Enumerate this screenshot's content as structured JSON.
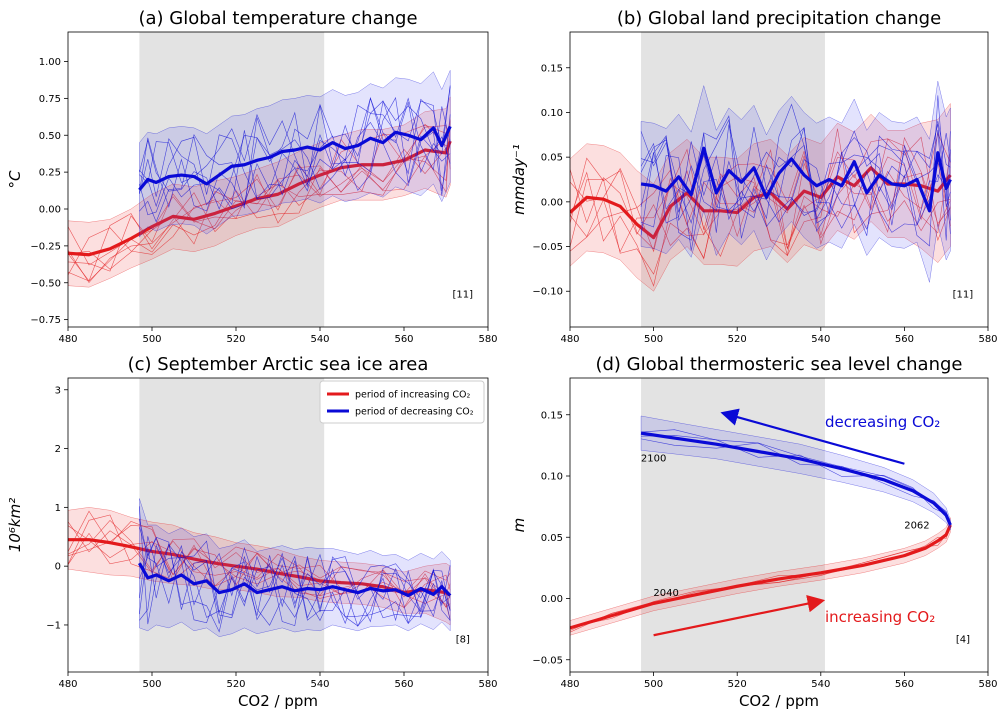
{
  "chart_data": [
    {
      "type": "line",
      "title": "(a) Global temperature change",
      "ylabel": "°C",
      "xlabel": "",
      "xlim": [
        480,
        580
      ],
      "ylim": [
        -0.8,
        1.2
      ],
      "xticks": [
        "480",
        "500",
        "520",
        "540",
        "560",
        "580"
      ],
      "yticks": [
        "−0.75",
        "−0.50",
        "−0.25",
        "0.00",
        "0.25",
        "0.50",
        "0.75",
        "1.00"
      ],
      "ytick_values": [
        -0.75,
        -0.5,
        -0.25,
        0,
        0.25,
        0.5,
        0.75,
        1.0
      ],
      "shaded_x_range": [
        497,
        541
      ],
      "note": "[11]",
      "series": [
        {
          "name": "period of increasing CO2",
          "color": "#e31a1c",
          "x": [
            480,
            485,
            490,
            495,
            500,
            505,
            510,
            515,
            520,
            525,
            530,
            535,
            540,
            545,
            550,
            555,
            560,
            565,
            570,
            571
          ],
          "y": [
            -0.3,
            -0.31,
            -0.27,
            -0.2,
            -0.12,
            -0.05,
            -0.07,
            -0.03,
            0.02,
            0.07,
            0.1,
            0.17,
            0.23,
            0.28,
            0.3,
            0.3,
            0.33,
            0.4,
            0.38,
            0.46
          ],
          "band": [
            0.22,
            0.22,
            0.2,
            0.2,
            0.22,
            0.22,
            0.22,
            0.22,
            0.2,
            0.2,
            0.22,
            0.22,
            0.22,
            0.22,
            0.24,
            0.24,
            0.24,
            0.26,
            0.3,
            0.3
          ]
        },
        {
          "name": "period of decreasing CO2",
          "color": "#0a0ad6",
          "x": [
            497,
            499,
            501,
            504,
            507,
            510,
            513,
            516,
            519,
            522,
            525,
            528,
            531,
            534,
            537,
            540,
            543,
            546,
            549,
            552,
            555,
            558,
            561,
            564,
            567,
            569,
            571
          ],
          "y": [
            0.13,
            0.2,
            0.18,
            0.22,
            0.23,
            0.22,
            0.17,
            0.23,
            0.29,
            0.3,
            0.33,
            0.35,
            0.39,
            0.4,
            0.42,
            0.4,
            0.45,
            0.41,
            0.43,
            0.48,
            0.45,
            0.52,
            0.5,
            0.47,
            0.55,
            0.43,
            0.56
          ],
          "band": [
            0.32,
            0.32,
            0.33,
            0.33,
            0.33,
            0.33,
            0.34,
            0.34,
            0.34,
            0.34,
            0.35,
            0.35,
            0.35,
            0.35,
            0.35,
            0.36,
            0.36,
            0.36,
            0.36,
            0.37,
            0.37,
            0.37,
            0.38,
            0.38,
            0.38,
            0.38,
            0.38
          ]
        }
      ]
    },
    {
      "type": "line",
      "title": "(b) Global land precipitation change",
      "ylabel": "mmday⁻¹",
      "xlabel": "",
      "xlim": [
        480,
        580
      ],
      "ylim": [
        -0.14,
        0.19
      ],
      "xticks": [
        "480",
        "500",
        "520",
        "540",
        "560",
        "580"
      ],
      "yticks": [
        "−0.10",
        "−0.05",
        "0.00",
        "0.05",
        "0.10",
        "0.15"
      ],
      "ytick_values": [
        -0.1,
        -0.05,
        0.0,
        0.05,
        0.1,
        0.15
      ],
      "shaded_x_range": [
        497,
        541
      ],
      "note": "[11]",
      "series": [
        {
          "name": "period of increasing CO2",
          "color": "#e31a1c",
          "x": [
            480,
            484,
            488,
            492,
            496,
            500,
            504,
            508,
            512,
            516,
            520,
            524,
            528,
            532,
            536,
            540,
            544,
            548,
            552,
            556,
            560,
            564,
            568,
            571
          ],
          "y": [
            -0.012,
            0.005,
            0.003,
            -0.005,
            -0.025,
            -0.04,
            -0.005,
            0.01,
            -0.01,
            -0.01,
            -0.012,
            0.005,
            0.01,
            -0.008,
            0.012,
            0.005,
            0.028,
            0.018,
            0.038,
            0.02,
            0.02,
            0.018,
            0.012,
            0.03
          ],
          "band": [
            0.06,
            0.06,
            0.06,
            0.06,
            0.06,
            0.06,
            0.06,
            0.06,
            0.06,
            0.06,
            0.06,
            0.06,
            0.06,
            0.06,
            0.06,
            0.06,
            0.06,
            0.06,
            0.06,
            0.06,
            0.06,
            0.07,
            0.08,
            0.08
          ]
        },
        {
          "name": "period of decreasing CO2",
          "color": "#0a0ad6",
          "x": [
            497,
            500,
            503,
            506,
            509,
            512,
            515,
            518,
            521,
            524,
            527,
            530,
            533,
            536,
            539,
            542,
            545,
            548,
            551,
            554,
            557,
            560,
            563,
            566,
            568,
            570,
            571
          ],
          "y": [
            0.02,
            0.018,
            0.012,
            0.028,
            0.008,
            0.06,
            0.01,
            0.035,
            0.022,
            0.038,
            0.005,
            0.032,
            0.048,
            0.03,
            0.018,
            0.025,
            0.018,
            0.045,
            0.01,
            0.03,
            0.02,
            0.018,
            0.025,
            -0.01,
            0.055,
            0.015,
            0.025
          ],
          "band": [
            0.07,
            0.07,
            0.07,
            0.07,
            0.07,
            0.07,
            0.07,
            0.07,
            0.07,
            0.07,
            0.07,
            0.07,
            0.07,
            0.07,
            0.07,
            0.07,
            0.07,
            0.07,
            0.07,
            0.07,
            0.07,
            0.07,
            0.07,
            0.08,
            0.08,
            0.08,
            0.08
          ]
        }
      ]
    },
    {
      "type": "line",
      "title": "(c) September Arctic sea ice area",
      "ylabel": "10⁶km²",
      "xlabel": "CO2 / ppm",
      "xlim": [
        480,
        580
      ],
      "ylim": [
        -1.8,
        3.2
      ],
      "xticks": [
        "480",
        "500",
        "520",
        "540",
        "560",
        "580"
      ],
      "yticks": [
        "−1",
        "0",
        "1",
        "2",
        "3"
      ],
      "ytick_values": [
        -1,
        0,
        1,
        2,
        3
      ],
      "shaded_x_range": [
        497,
        541
      ],
      "note": "[8]",
      "legend": {
        "placement": "top-right",
        "items": [
          "period of increasing CO₂",
          "period of decreasing CO₂"
        ]
      },
      "series": [
        {
          "name": "period of increasing CO2",
          "color": "#e31a1c",
          "x": [
            480,
            485,
            490,
            495,
            500,
            505,
            510,
            515,
            520,
            525,
            530,
            535,
            540,
            545,
            550,
            555,
            560,
            565,
            570,
            571
          ],
          "y": [
            0.45,
            0.45,
            0.4,
            0.33,
            0.25,
            0.2,
            0.12,
            0.05,
            0.0,
            -0.05,
            -0.12,
            -0.18,
            -0.25,
            -0.28,
            -0.3,
            -0.35,
            -0.45,
            -0.4,
            -0.45,
            -0.5
          ],
          "band": [
            0.5,
            0.55,
            0.55,
            0.5,
            0.5,
            0.5,
            0.45,
            0.45,
            0.4,
            0.4,
            0.4,
            0.35,
            0.35,
            0.35,
            0.35,
            0.35,
            0.35,
            0.4,
            0.5,
            0.5
          ]
        },
        {
          "name": "period of decreasing CO2",
          "color": "#0a0ad6",
          "x": [
            497,
            499,
            501,
            504,
            507,
            510,
            513,
            516,
            519,
            522,
            525,
            528,
            531,
            534,
            537,
            540,
            543,
            546,
            549,
            552,
            555,
            558,
            561,
            564,
            567,
            569,
            571
          ],
          "y": [
            0.05,
            -0.2,
            -0.15,
            -0.25,
            -0.15,
            -0.3,
            -0.25,
            -0.45,
            -0.4,
            -0.3,
            -0.45,
            -0.4,
            -0.35,
            -0.42,
            -0.38,
            -0.4,
            -0.35,
            -0.4,
            -0.45,
            -0.38,
            -0.42,
            -0.4,
            -0.5,
            -0.38,
            -0.48,
            -0.35,
            -0.5
          ],
          "band": [
            1.1,
            0.9,
            0.85,
            0.8,
            0.8,
            0.8,
            0.8,
            0.75,
            0.75,
            0.75,
            0.7,
            0.7,
            0.7,
            0.7,
            0.7,
            0.7,
            0.65,
            0.65,
            0.65,
            0.65,
            0.6,
            0.6,
            0.6,
            0.6,
            0.6,
            0.6,
            0.6
          ]
        }
      ]
    },
    {
      "type": "line",
      "title": "(d) Global thermosteric sea level change",
      "ylabel": "m",
      "xlabel": "CO2 / ppm",
      "xlim": [
        480,
        580
      ],
      "ylim": [
        -0.06,
        0.18
      ],
      "xticks": [
        "480",
        "500",
        "520",
        "540",
        "560",
        "580"
      ],
      "yticks": [
        "−0.05",
        "0.00",
        "0.05",
        "0.10",
        "0.15"
      ],
      "ytick_values": [
        -0.05,
        0.0,
        0.05,
        0.1,
        0.15
      ],
      "shaded_x_range": [
        497,
        541
      ],
      "note": "[4]",
      "point_labels": [
        {
          "text": "2100",
          "x": 500,
          "y": 0.112
        },
        {
          "text": "2062",
          "x": 563,
          "y": 0.057
        },
        {
          "text": "2040",
          "x": 503,
          "y": 0.002
        }
      ],
      "arrow_labels": {
        "decreasing": "decreasing CO₂",
        "increasing": "increasing CO₂"
      },
      "series": [
        {
          "name": "period of increasing CO2",
          "color": "#e31a1c",
          "x": [
            480,
            490,
            500,
            510,
            520,
            530,
            540,
            550,
            560,
            565,
            568,
            570,
            571
          ],
          "y": [
            -0.024,
            -0.014,
            -0.004,
            0.003,
            0.01,
            0.016,
            0.021,
            0.027,
            0.035,
            0.041,
            0.047,
            0.052,
            0.06
          ],
          "band": [
            0.006,
            0.006,
            0.006,
            0.006,
            0.006,
            0.006,
            0.006,
            0.006,
            0.006,
            0.006,
            0.006,
            0.006,
            0.006
          ]
        },
        {
          "name": "period of decreasing CO2",
          "color": "#0a0ad6",
          "x": [
            497,
            505,
            515,
            525,
            535,
            545,
            555,
            562,
            567,
            570,
            571
          ],
          "y": [
            0.135,
            0.131,
            0.126,
            0.12,
            0.114,
            0.106,
            0.097,
            0.088,
            0.078,
            0.068,
            0.06
          ],
          "band": [
            0.014,
            0.013,
            0.012,
            0.012,
            0.012,
            0.011,
            0.01,
            0.009,
            0.008,
            0.006,
            0.004
          ]
        }
      ]
    }
  ]
}
